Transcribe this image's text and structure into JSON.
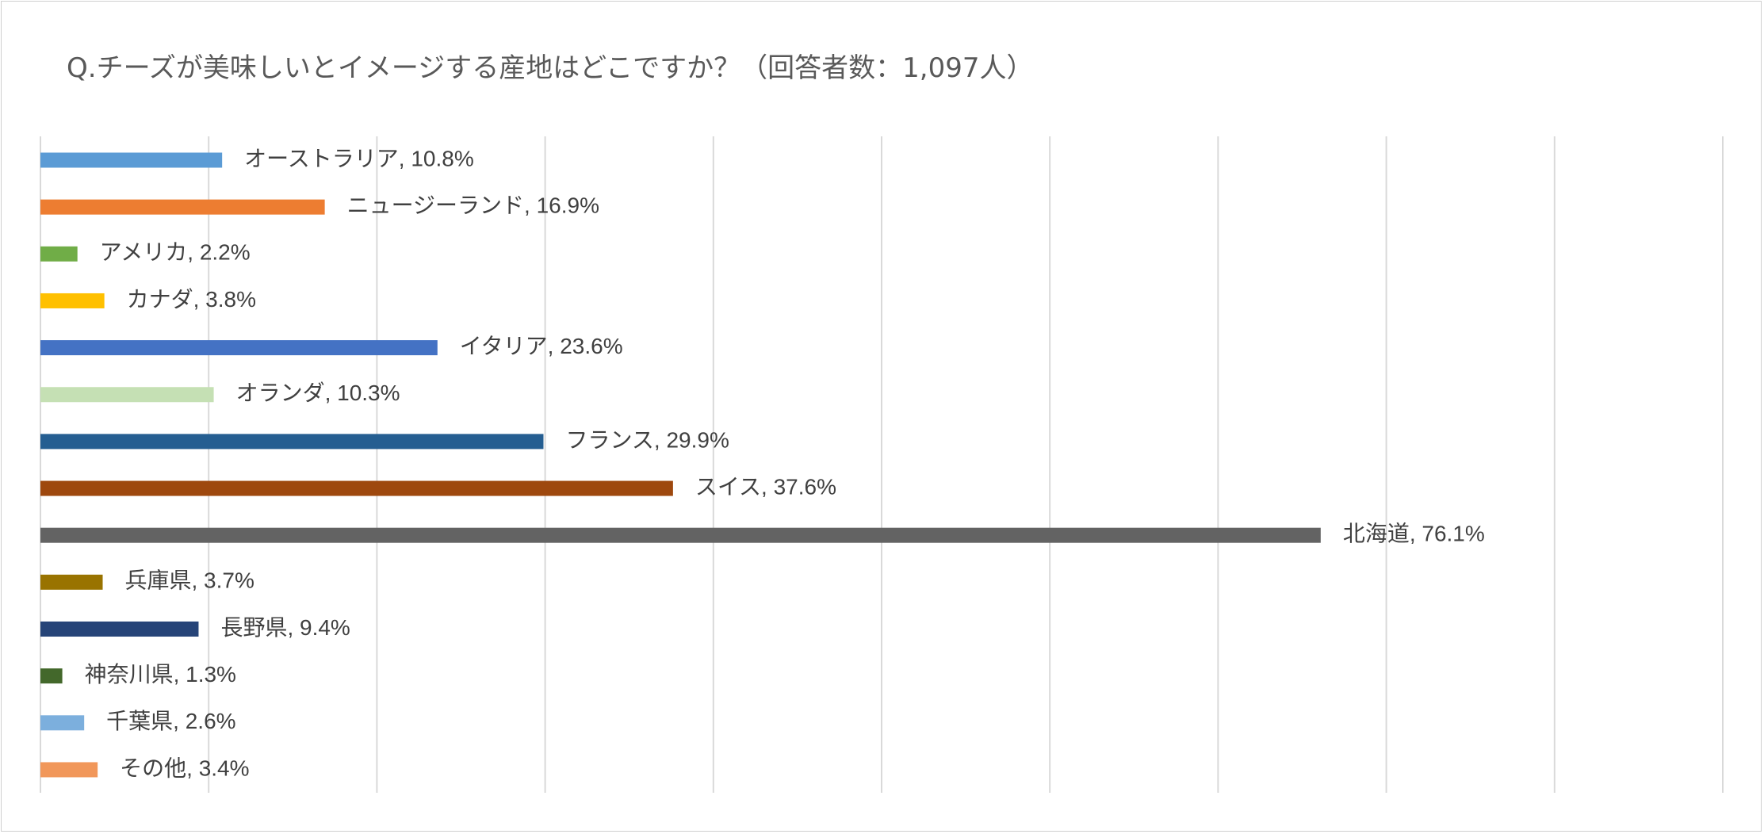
{
  "chart_data": {
    "type": "bar",
    "orientation": "horizontal",
    "title": "Q.チーズが美味しいとイメージする産地はどこですか？（回答者数：1,097人）",
    "xlim": [
      0,
      100
    ],
    "grid": true,
    "legend": "none",
    "data_label_format": "{category}, {value}%",
    "categories": [
      "オーストラリア",
      "ニュージーランド",
      "アメリカ",
      "カナダ",
      "イタリア",
      "オランダ",
      "フランス",
      "スイス",
      "北海道",
      "兵庫県",
      "長野県",
      "神奈川県",
      "千葉県",
      "その他"
    ],
    "values": [
      10.8,
      16.9,
      2.2,
      3.8,
      23.6,
      10.3,
      29.9,
      37.6,
      76.1,
      3.7,
      9.4,
      1.3,
      2.6,
      3.4
    ],
    "colors": [
      "#5b9bd5",
      "#ed7d31",
      "#70ad47",
      "#ffc000",
      "#4472c4",
      "#c5e0b4",
      "#255e91",
      "#9e480e",
      "#636363",
      "#997300",
      "#264478",
      "#43682b",
      "#7cafdd",
      "#f1975a"
    ]
  }
}
